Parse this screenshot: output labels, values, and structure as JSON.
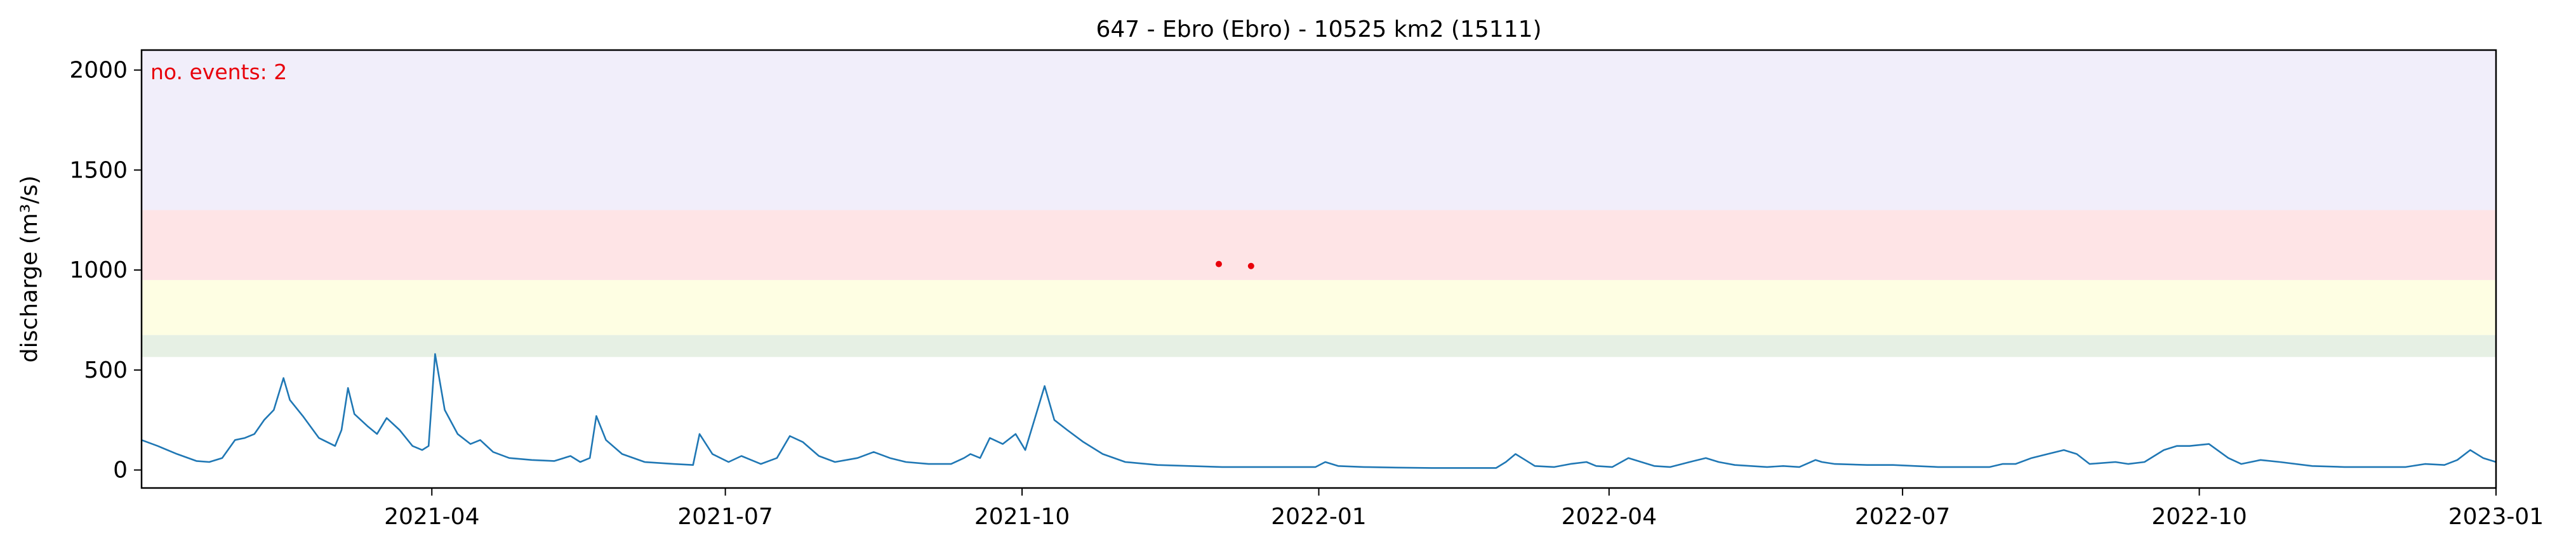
{
  "chart_data": {
    "type": "line",
    "title": "647 - Ebro (Ebro) - 10525 km2 (15111)",
    "xlabel": "",
    "ylabel": "discharge (m³/s)",
    "xlim": [
      "2021-01-01",
      "2023-01-01"
    ],
    "ylim": [
      -90,
      2100
    ],
    "x_ticks": [
      "2021-04",
      "2021-07",
      "2021-10",
      "2022-01",
      "2022-04",
      "2022-07",
      "2022-10",
      "2023-01"
    ],
    "y_ticks": [
      0,
      500,
      1000,
      1500,
      2000
    ],
    "grid": false,
    "annotation": "no. events: 2",
    "threshold_bands": [
      {
        "from": 565,
        "to": 675,
        "color": "#e6f0e4"
      },
      {
        "from": 675,
        "to": 950,
        "color": "#fefee3"
      },
      {
        "from": 950,
        "to": 1300,
        "color": "#fee4e6"
      },
      {
        "from": 1300,
        "to": 2100,
        "color": "#f1eefa"
      }
    ],
    "series": [
      {
        "color": "#1f77b4",
        "points": [
          [
            "2021-01-01",
            150
          ],
          [
            "2021-01-06",
            120
          ],
          [
            "2021-01-12",
            80
          ],
          [
            "2021-01-18",
            45
          ],
          [
            "2021-01-22",
            40
          ],
          [
            "2021-01-26",
            60
          ],
          [
            "2021-01-30",
            150
          ],
          [
            "2021-02-02",
            160
          ],
          [
            "2021-02-05",
            180
          ],
          [
            "2021-02-08",
            250
          ],
          [
            "2021-02-11",
            300
          ],
          [
            "2021-02-14",
            460
          ],
          [
            "2021-02-16",
            350
          ],
          [
            "2021-02-20",
            270
          ],
          [
            "2021-02-25",
            160
          ],
          [
            "2021-03-02",
            120
          ],
          [
            "2021-03-04",
            200
          ],
          [
            "2021-03-06",
            410
          ],
          [
            "2021-03-08",
            280
          ],
          [
            "2021-03-12",
            220
          ],
          [
            "2021-03-15",
            180
          ],
          [
            "2021-03-18",
            260
          ],
          [
            "2021-03-22",
            200
          ],
          [
            "2021-03-26",
            120
          ],
          [
            "2021-03-29",
            100
          ],
          [
            "2021-03-31",
            120
          ],
          [
            "2021-04-02",
            580
          ],
          [
            "2021-04-05",
            300
          ],
          [
            "2021-04-09",
            180
          ],
          [
            "2021-04-13",
            130
          ],
          [
            "2021-04-16",
            150
          ],
          [
            "2021-04-20",
            90
          ],
          [
            "2021-04-25",
            60
          ],
          [
            "2021-05-02",
            50
          ],
          [
            "2021-05-09",
            45
          ],
          [
            "2021-05-14",
            70
          ],
          [
            "2021-05-17",
            40
          ],
          [
            "2021-05-20",
            60
          ],
          [
            "2021-05-22",
            270
          ],
          [
            "2021-05-25",
            150
          ],
          [
            "2021-05-30",
            80
          ],
          [
            "2021-06-06",
            40
          ],
          [
            "2021-06-15",
            30
          ],
          [
            "2021-06-21",
            25
          ],
          [
            "2021-06-23",
            180
          ],
          [
            "2021-06-27",
            80
          ],
          [
            "2021-07-02",
            40
          ],
          [
            "2021-07-06",
            70
          ],
          [
            "2021-07-09",
            50
          ],
          [
            "2021-07-12",
            30
          ],
          [
            "2021-07-17",
            60
          ],
          [
            "2021-07-21",
            170
          ],
          [
            "2021-07-25",
            140
          ],
          [
            "2021-07-30",
            70
          ],
          [
            "2021-08-04",
            40
          ],
          [
            "2021-08-11",
            60
          ],
          [
            "2021-08-16",
            90
          ],
          [
            "2021-08-21",
            60
          ],
          [
            "2021-08-26",
            40
          ],
          [
            "2021-09-02",
            30
          ],
          [
            "2021-09-09",
            30
          ],
          [
            "2021-09-13",
            60
          ],
          [
            "2021-09-15",
            80
          ],
          [
            "2021-09-18",
            60
          ],
          [
            "2021-09-21",
            160
          ],
          [
            "2021-09-25",
            130
          ],
          [
            "2021-09-29",
            180
          ],
          [
            "2021-10-02",
            100
          ],
          [
            "2021-10-05",
            260
          ],
          [
            "2021-10-08",
            420
          ],
          [
            "2021-10-11",
            250
          ],
          [
            "2021-10-15",
            200
          ],
          [
            "2021-10-20",
            140
          ],
          [
            "2021-10-26",
            80
          ],
          [
            "2021-11-02",
            40
          ],
          [
            "2021-11-12",
            25
          ],
          [
            "2021-11-22",
            20
          ],
          [
            "2021-12-02",
            15
          ],
          [
            "2021-12-12",
            15
          ],
          [
            "2021-12-22",
            15
          ],
          [
            "2021-12-27",
            15
          ],
          [
            "2021-12-31",
            15
          ],
          [
            "2022-01-03",
            40
          ],
          [
            "2022-01-07",
            20
          ],
          [
            "2022-01-15",
            15
          ],
          [
            "2022-01-25",
            12
          ],
          [
            "2022-02-05",
            10
          ],
          [
            "2022-02-15",
            10
          ],
          [
            "2022-02-25",
            10
          ],
          [
            "2022-02-28",
            40
          ],
          [
            "2022-03-03",
            80
          ],
          [
            "2022-03-06",
            50
          ],
          [
            "2022-03-09",
            20
          ],
          [
            "2022-03-15",
            15
          ],
          [
            "2022-03-20",
            30
          ],
          [
            "2022-03-25",
            40
          ],
          [
            "2022-03-28",
            20
          ],
          [
            "2022-04-02",
            15
          ],
          [
            "2022-04-07",
            60
          ],
          [
            "2022-04-11",
            40
          ],
          [
            "2022-04-15",
            20
          ],
          [
            "2022-04-20",
            15
          ],
          [
            "2022-04-26",
            40
          ],
          [
            "2022-05-01",
            60
          ],
          [
            "2022-05-05",
            40
          ],
          [
            "2022-05-10",
            25
          ],
          [
            "2022-05-15",
            20
          ],
          [
            "2022-05-20",
            15
          ],
          [
            "2022-05-25",
            20
          ],
          [
            "2022-05-30",
            15
          ],
          [
            "2022-06-04",
            50
          ],
          [
            "2022-06-06",
            40
          ],
          [
            "2022-06-10",
            30
          ],
          [
            "2022-06-20",
            25
          ],
          [
            "2022-06-28",
            25
          ],
          [
            "2022-07-05",
            20
          ],
          [
            "2022-07-12",
            15
          ],
          [
            "2022-07-20",
            15
          ],
          [
            "2022-07-28",
            15
          ],
          [
            "2022-08-01",
            30
          ],
          [
            "2022-08-05",
            30
          ],
          [
            "2022-08-10",
            60
          ],
          [
            "2022-08-15",
            80
          ],
          [
            "2022-08-20",
            100
          ],
          [
            "2022-08-24",
            80
          ],
          [
            "2022-08-28",
            30
          ],
          [
            "2022-09-05",
            40
          ],
          [
            "2022-09-09",
            30
          ],
          [
            "2022-09-14",
            40
          ],
          [
            "2022-09-20",
            100
          ],
          [
            "2022-09-24",
            120
          ],
          [
            "2022-09-28",
            120
          ],
          [
            "2022-10-04",
            130
          ],
          [
            "2022-10-10",
            60
          ],
          [
            "2022-10-14",
            30
          ],
          [
            "2022-10-20",
            50
          ],
          [
            "2022-10-26",
            40
          ],
          [
            "2022-11-05",
            20
          ],
          [
            "2022-11-15",
            15
          ],
          [
            "2022-11-22",
            15
          ],
          [
            "2022-11-30",
            15
          ],
          [
            "2022-12-04",
            15
          ],
          [
            "2022-12-10",
            30
          ],
          [
            "2022-12-16",
            25
          ],
          [
            "2022-12-20",
            50
          ],
          [
            "2022-12-24",
            100
          ],
          [
            "2022-12-28",
            60
          ],
          [
            "2023-01-01",
            40
          ]
        ]
      }
    ],
    "event_markers": [
      {
        "x": "2021-12-01",
        "y": 1030,
        "color": "#e8000b"
      },
      {
        "x": "2021-12-11",
        "y": 1020,
        "color": "#e8000b"
      }
    ]
  }
}
